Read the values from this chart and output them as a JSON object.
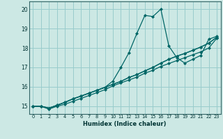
{
  "xlabel": "Humidex (Indice chaleur)",
  "bg_color": "#cce8e4",
  "grid_color": "#99cccc",
  "line_color": "#006666",
  "xlim": [
    -0.5,
    23.5
  ],
  "ylim": [
    14.6,
    20.4
  ],
  "yticks": [
    15,
    16,
    17,
    18,
    19,
    20
  ],
  "xticks": [
    0,
    1,
    2,
    3,
    4,
    5,
    6,
    7,
    8,
    9,
    10,
    11,
    12,
    13,
    14,
    15,
    16,
    17,
    18,
    19,
    20,
    21,
    22,
    23
  ],
  "line1_x": [
    0,
    1,
    2,
    3,
    4,
    5,
    6,
    7,
    8,
    9,
    10,
    11,
    12,
    13,
    14,
    15,
    16,
    17,
    18,
    19,
    20,
    21,
    22,
    23
  ],
  "line1_y": [
    15.0,
    15.0,
    14.85,
    15.0,
    15.1,
    15.25,
    15.4,
    15.55,
    15.7,
    15.85,
    16.05,
    16.2,
    16.35,
    16.5,
    16.7,
    16.85,
    17.05,
    17.2,
    17.35,
    17.5,
    17.65,
    17.8,
    18.0,
    18.5
  ],
  "line2_x": [
    0,
    1,
    2,
    3,
    4,
    5,
    6,
    7,
    8,
    9,
    10,
    11,
    12,
    13,
    14,
    15,
    16,
    17,
    18,
    19,
    20,
    21,
    22,
    23
  ],
  "line2_y": [
    15.0,
    15.0,
    14.9,
    15.05,
    15.2,
    15.38,
    15.52,
    15.67,
    15.82,
    15.97,
    16.13,
    16.28,
    16.48,
    16.63,
    16.82,
    17.0,
    17.22,
    17.42,
    17.58,
    17.72,
    17.88,
    18.05,
    18.25,
    18.55
  ],
  "line3_x": [
    0,
    1,
    2,
    3,
    4,
    5,
    6,
    7,
    8,
    9,
    10,
    11,
    12,
    13,
    14,
    15,
    16,
    17,
    18,
    19,
    20,
    21,
    22,
    23
  ],
  "line3_y": [
    15.0,
    15.0,
    14.9,
    15.05,
    15.2,
    15.38,
    15.52,
    15.67,
    15.82,
    15.97,
    16.3,
    17.0,
    17.75,
    18.75,
    19.68,
    19.62,
    20.0,
    18.1,
    17.5,
    17.22,
    17.42,
    17.62,
    18.45,
    18.6
  ],
  "line4_x": [
    0,
    1,
    2,
    3,
    4,
    5,
    6,
    7,
    8,
    9,
    10,
    11,
    12,
    13,
    14,
    15,
    16,
    17,
    18,
    19,
    20,
    21,
    22,
    23
  ],
  "line4_y": [
    15.0,
    15.0,
    14.9,
    15.05,
    15.2,
    15.38,
    15.52,
    15.67,
    15.82,
    15.97,
    16.13,
    16.28,
    16.48,
    16.63,
    16.82,
    17.0,
    17.22,
    17.42,
    17.58,
    17.72,
    17.88,
    18.05,
    18.25,
    18.55
  ]
}
